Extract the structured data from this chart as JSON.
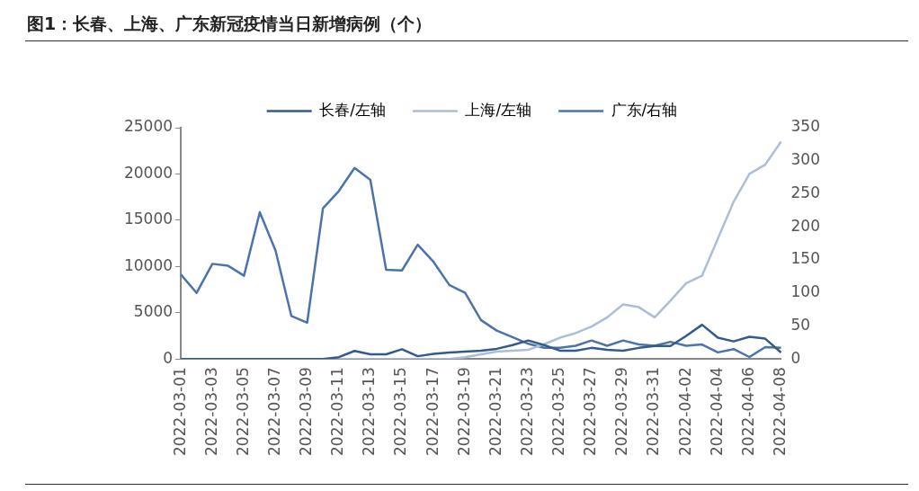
{
  "chart_data": {
    "type": "line",
    "title": "图1：长春、上海、广东新冠疫情当日新增病例（个）",
    "categories": [
      "2022-03-01",
      null,
      "2022-03-03",
      null,
      "2022-03-05",
      null,
      "2022-03-07",
      null,
      "2022-03-09",
      null,
      "2022-03-11",
      null,
      "2022-03-13",
      null,
      "2022-03-15",
      null,
      "2022-03-17",
      null,
      "2022-03-19",
      null,
      "2022-03-21",
      null,
      "2022-03-23",
      null,
      "2022-03-25",
      null,
      "2022-03-27",
      null,
      "2022-03-29",
      null,
      "2022-03-31",
      null,
      "2022-04-02",
      null,
      "2022-04-04",
      null,
      "2022-04-06",
      null,
      "2022-04-08"
    ],
    "series": [
      {
        "name": "长春/左轴",
        "color": "#355a8c",
        "values": [
          0,
          0,
          0,
          0,
          0,
          0,
          0,
          0,
          0,
          0,
          200,
          870,
          500,
          500,
          1050,
          300,
          550,
          700,
          800,
          900,
          1100,
          1500,
          2000,
          1500,
          900,
          900,
          1200,
          1000,
          900,
          1200,
          1400,
          1400,
          2500,
          3700,
          2300,
          1900,
          2400,
          2200,
          700
        ]
      },
      {
        "name": "上海/左轴",
        "color": "#aebdd6",
        "values": [
          0,
          0,
          0,
          0,
          0,
          0,
          0,
          0,
          0,
          0,
          0,
          0,
          0,
          0,
          0,
          0,
          0,
          0,
          200,
          500,
          800,
          900,
          1000,
          1600,
          2300,
          2800,
          3500,
          4500,
          5900,
          5600,
          4500,
          6300,
          8200,
          9000,
          13000,
          17000,
          20000,
          21000,
          23500
        ]
      },
      {
        "name": "广东/右轴",
        "color": "#4b73ac",
        "axis": "y2",
        "values": [
          128,
          100,
          144,
          141,
          126,
          222,
          164,
          65,
          55,
          228,
          254,
          289,
          271,
          135,
          134,
          173,
          147,
          112,
          100,
          59,
          43,
          33,
          23,
          17,
          17,
          20,
          28,
          20,
          28,
          22,
          20,
          26,
          20,
          22,
          10,
          15,
          3,
          18,
          17
        ]
      }
    ],
    "ylim": [
      0,
      25000
    ],
    "yticks": [
      0,
      5000,
      10000,
      15000,
      20000,
      25000
    ],
    "y2lim": [
      0,
      350
    ],
    "y2ticks": [
      0,
      50,
      100,
      150,
      200,
      250,
      300,
      350
    ],
    "legend": "top",
    "grid": false,
    "marker": "none"
  }
}
